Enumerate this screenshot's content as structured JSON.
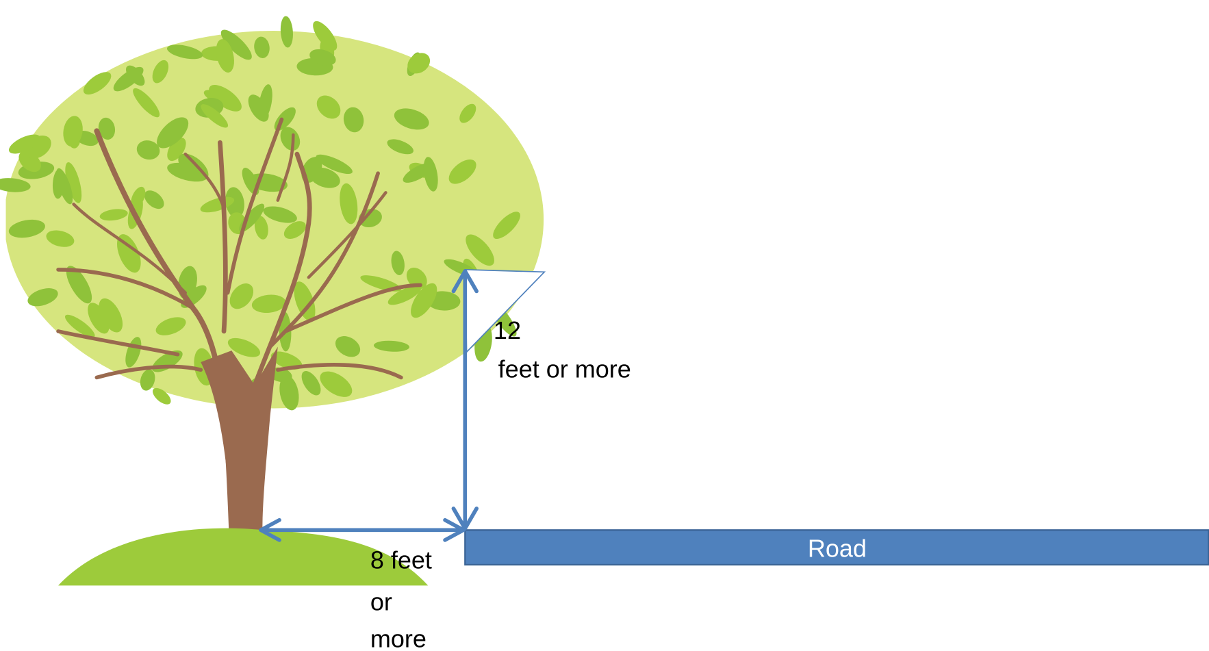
{
  "labels": {
    "height": [
      "12",
      "feet or more"
    ],
    "distance": [
      "8 feet",
      "or",
      "more"
    ],
    "road": "Road"
  }
}
